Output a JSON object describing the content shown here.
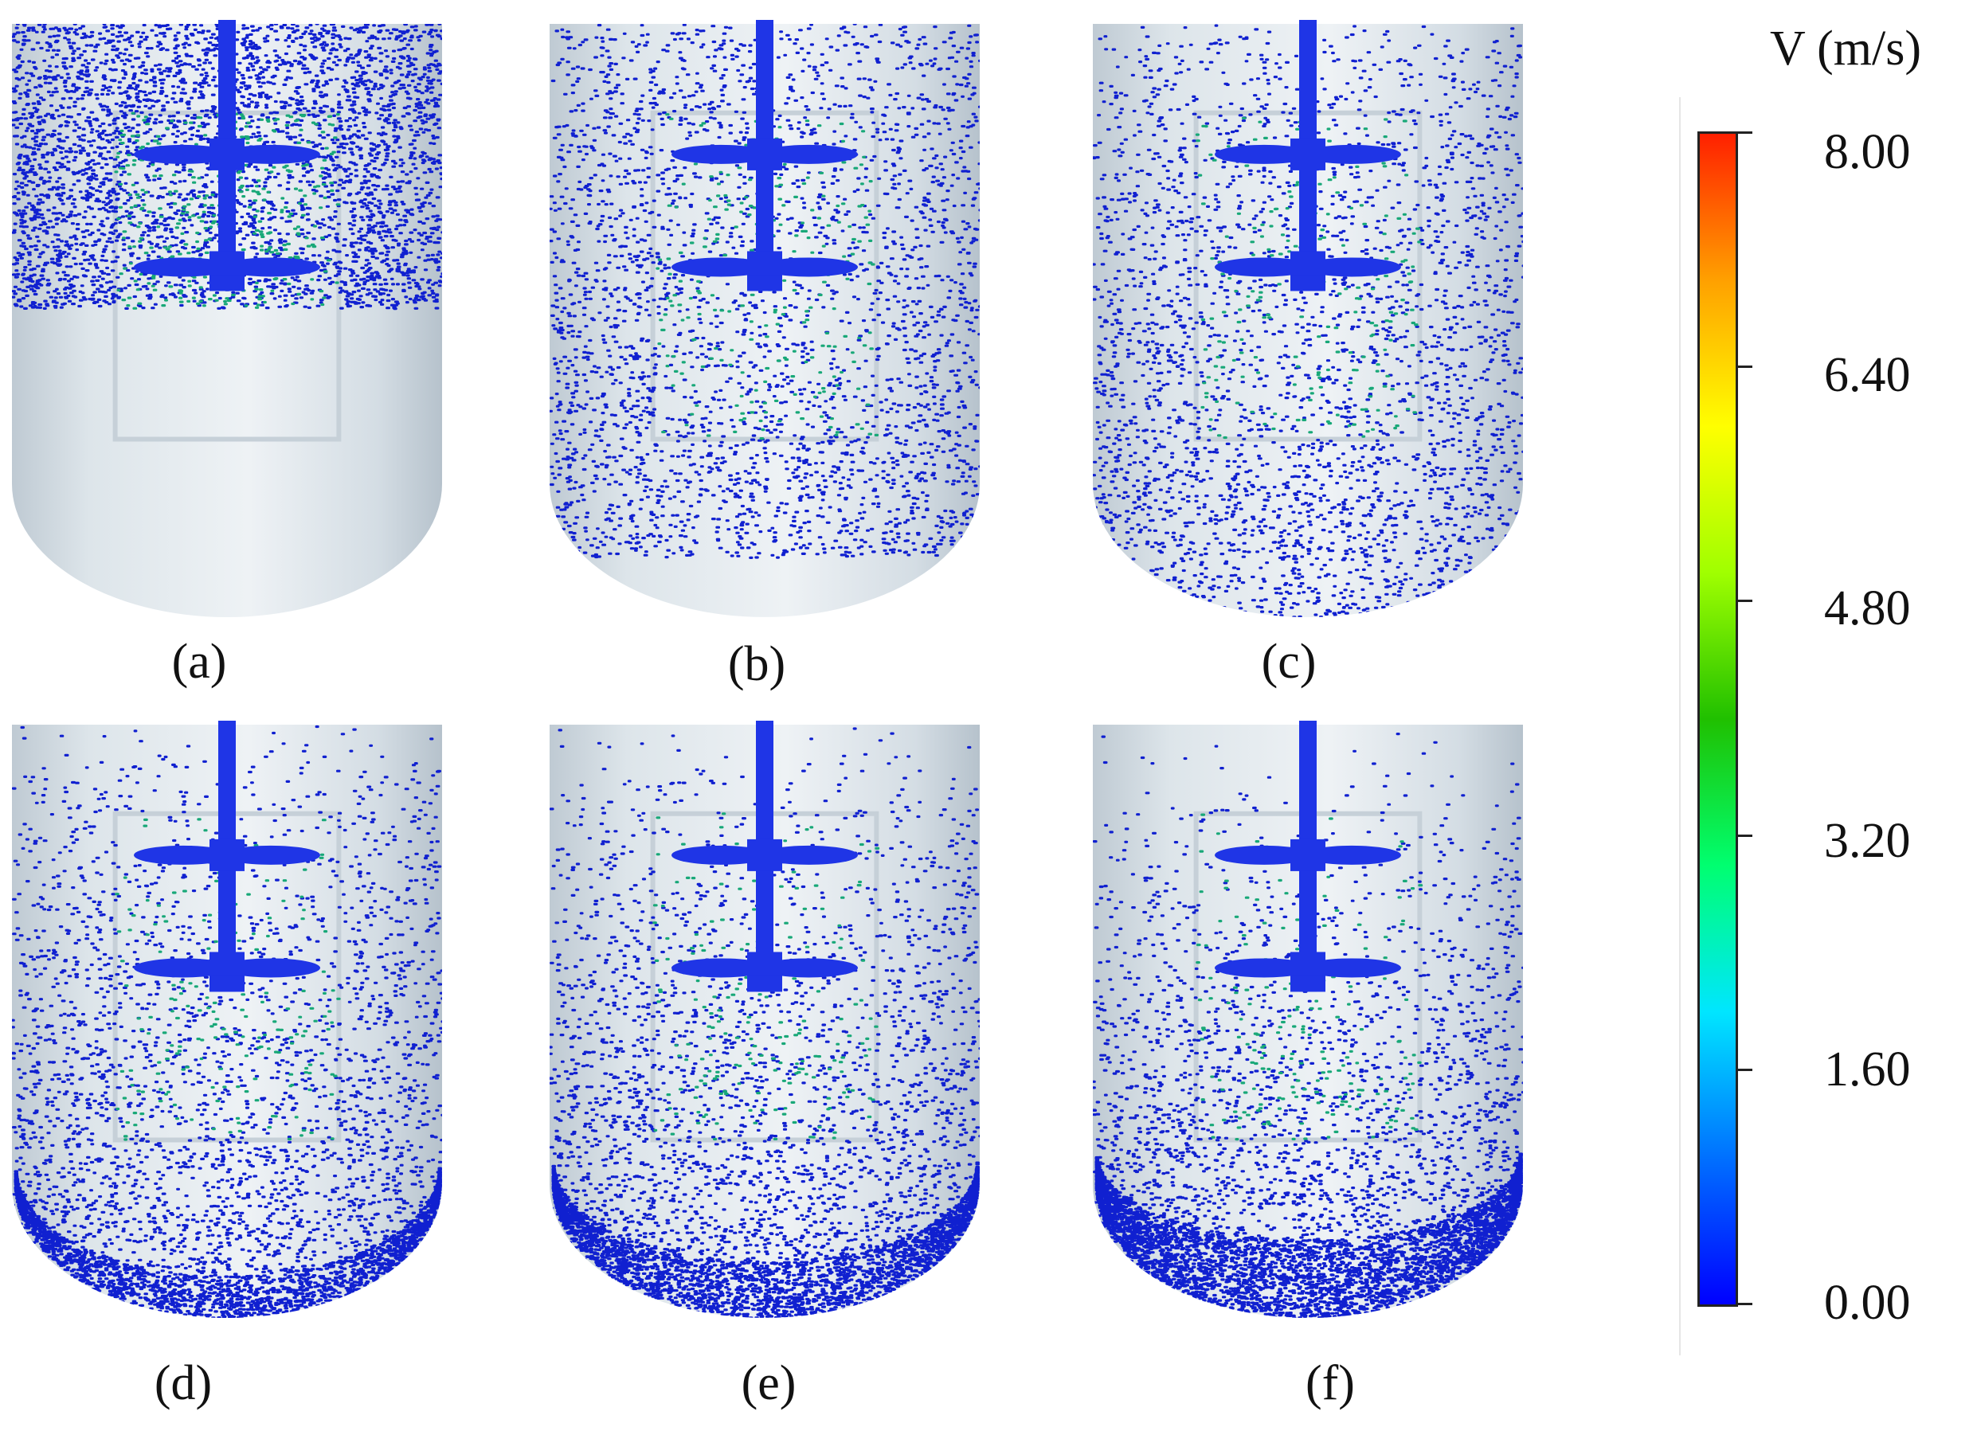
{
  "panels": [
    {
      "label": "(a)",
      "particles": 4200,
      "fill": 0.48,
      "bottomBias": 0.0
    },
    {
      "label": "(b)",
      "particles": 7600,
      "fill": 0.9,
      "bottomBias": 0.15
    },
    {
      "label": "(c)",
      "particles": 9200,
      "fill": 1.0,
      "bottomBias": 0.35
    },
    {
      "label": "(d)",
      "particles": 10500,
      "fill": 1.0,
      "bottomBias": 0.75
    },
    {
      "label": "(e)",
      "particles": 11500,
      "fill": 1.0,
      "bottomBias": 1.0
    },
    {
      "label": "(f)",
      "particles": 11000,
      "fill": 1.0,
      "bottomBias": 1.4
    }
  ],
  "legend": {
    "title": "V (m/s)",
    "ticks": [
      "8.00",
      "6.40",
      "4.80",
      "3.20",
      "1.60",
      "0.00"
    ],
    "min": 0,
    "max": 8,
    "colors": [
      "#0000ff",
      "#0070ff",
      "#00e6ff",
      "#00ff70",
      "#20c000",
      "#a0ff00",
      "#ffff00",
      "#ffa000",
      "#ff2000"
    ]
  },
  "colors": {
    "vessel": "#c9d5de",
    "vesselEdge": "#e9eff3",
    "impeller": "#1f35e6",
    "particle": "#1020d0",
    "particleFast": "#18a878"
  }
}
